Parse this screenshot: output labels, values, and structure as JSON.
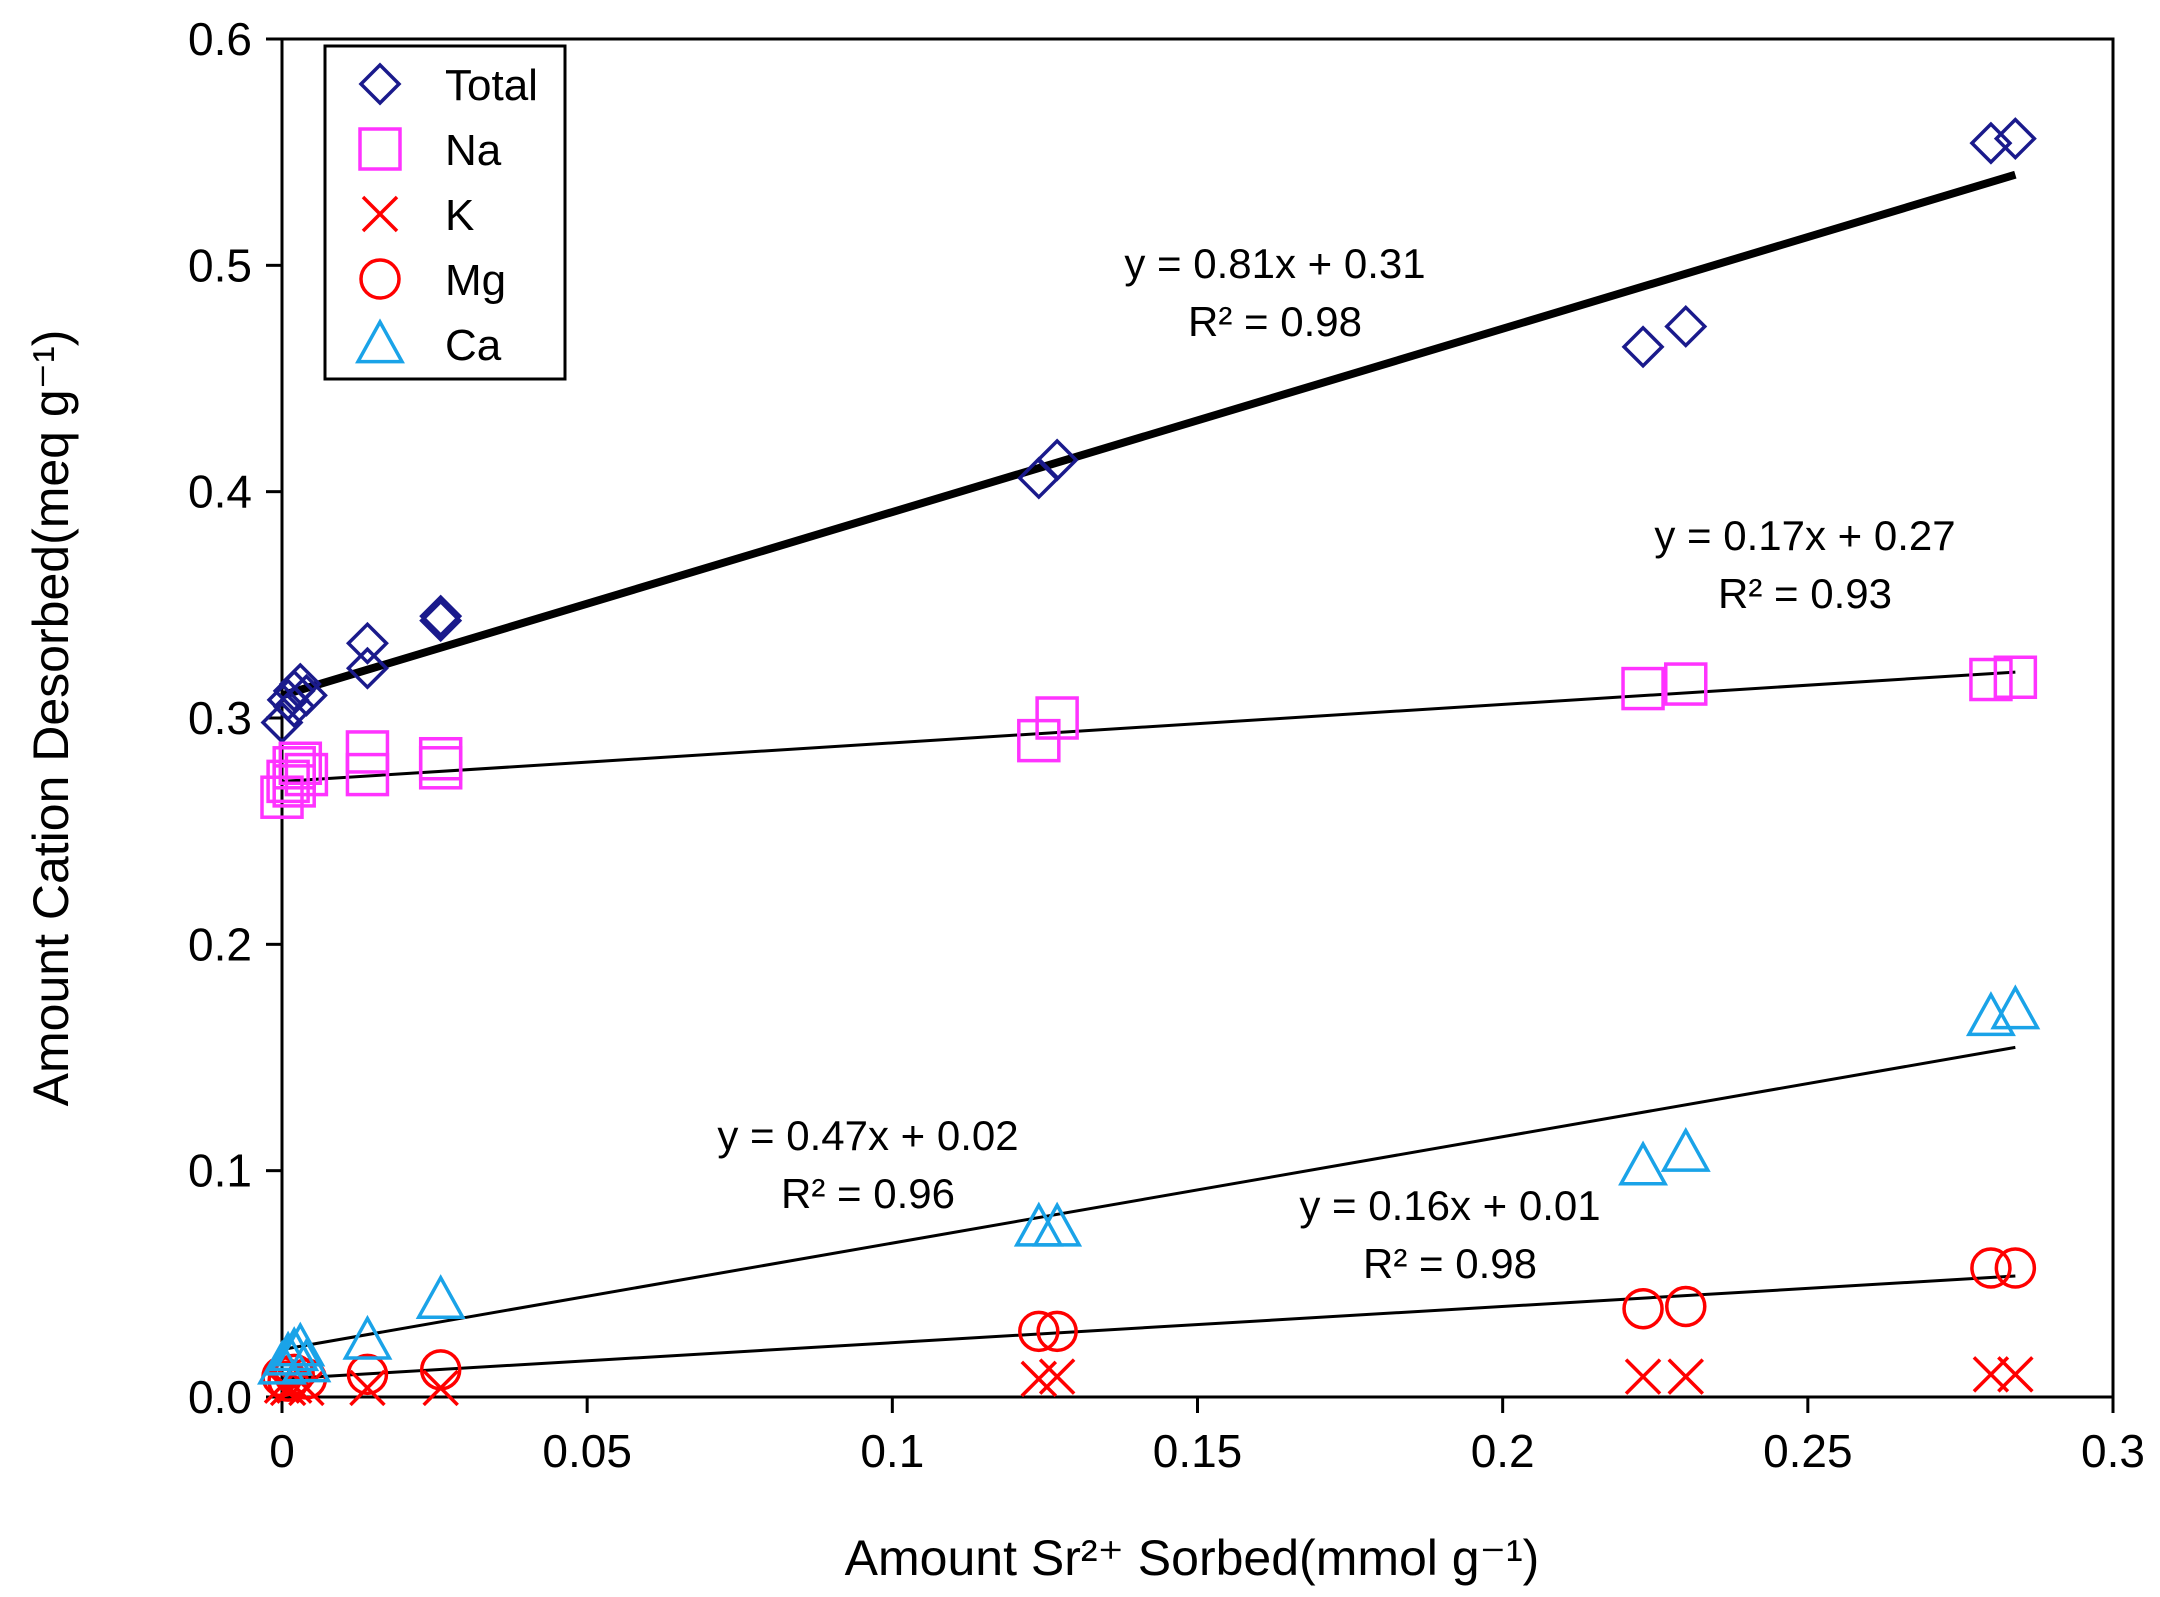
{
  "chart_data": {
    "type": "scatter",
    "title": "",
    "xlabel": "Amount Sr²⁺ Sorbed(mmol g⁻¹)",
    "ylabel": "Amount Cation Desorbed(meq g⁻¹)",
    "xlim": [
      0,
      0.3
    ],
    "ylim": [
      0,
      0.6
    ],
    "x_ticks": [
      0,
      0.05,
      0.1,
      0.15,
      0.2,
      0.25,
      0.3
    ],
    "x_tick_labels": [
      "0",
      "0.05",
      "0.1",
      "0.15",
      "0.2",
      "0.25",
      "0.3"
    ],
    "y_ticks": [
      0,
      0.1,
      0.2,
      0.3,
      0.4,
      0.5,
      0.6
    ],
    "y_tick_labels": [
      "0.0",
      "0.1",
      "0.2",
      "0.3",
      "0.4",
      "0.5",
      "0.6"
    ],
    "grid": false,
    "legend_position": "top-left",
    "series": [
      {
        "name": "Total",
        "marker": "diamond",
        "color": "#1a1a8c",
        "x": [
          0,
          0.001,
          0.002,
          0.003,
          0.002,
          0.004,
          0.014,
          0.014,
          0.026,
          0.026,
          0.124,
          0.127,
          0.223,
          0.23,
          0.28,
          0.284
        ],
        "y": [
          0.298,
          0.308,
          0.312,
          0.315,
          0.305,
          0.31,
          0.322,
          0.333,
          0.343,
          0.345,
          0.406,
          0.414,
          0.464,
          0.473,
          0.554,
          0.556
        ]
      },
      {
        "name": "Na",
        "marker": "square",
        "color": "#ff33ff",
        "x": [
          0,
          0.001,
          0.002,
          0.003,
          0.002,
          0.004,
          0.014,
          0.014,
          0.026,
          0.026,
          0.124,
          0.127,
          0.223,
          0.23,
          0.28,
          0.284
        ],
        "y": [
          0.265,
          0.272,
          0.278,
          0.28,
          0.27,
          0.275,
          0.275,
          0.285,
          0.278,
          0.282,
          0.29,
          0.3,
          0.313,
          0.315,
          0.317,
          0.318
        ]
      },
      {
        "name": "K",
        "marker": "x",
        "color": "#ff0000",
        "x": [
          0,
          0.001,
          0.002,
          0.004,
          0.014,
          0.026,
          0.124,
          0.127,
          0.223,
          0.23,
          0.28,
          0.284
        ],
        "y": [
          0.005,
          0.004,
          0.005,
          0.004,
          0.004,
          0.004,
          0.008,
          0.009,
          0.009,
          0.009,
          0.01,
          0.01
        ]
      },
      {
        "name": "Mg",
        "marker": "circle",
        "color": "#ff0000",
        "x": [
          0,
          0.001,
          0.002,
          0.004,
          0.014,
          0.026,
          0.124,
          0.127,
          0.223,
          0.23,
          0.28,
          0.284
        ],
        "y": [
          0.009,
          0.007,
          0.01,
          0.008,
          0.01,
          0.012,
          0.029,
          0.029,
          0.039,
          0.04,
          0.057,
          0.057
        ]
      },
      {
        "name": "Ca",
        "marker": "triangle",
        "color": "#1aa3e8",
        "x": [
          0,
          0.001,
          0.002,
          0.003,
          0.004,
          0.014,
          0.026,
          0.124,
          0.127,
          0.223,
          0.23,
          0.28,
          0.284
        ],
        "y": [
          0.014,
          0.018,
          0.02,
          0.022,
          0.015,
          0.025,
          0.043,
          0.075,
          0.075,
          0.102,
          0.108,
          0.168,
          0.171
        ]
      }
    ],
    "trendlines": [
      {
        "series": "Total",
        "slope": 0.81,
        "intercept": 0.31,
        "x_range": [
          0,
          0.284
        ],
        "stroke": "thick",
        "equation": "y = 0.81x + 0.31",
        "r2": "R² = 0.98"
      },
      {
        "series": "Na",
        "slope": 0.17,
        "intercept": 0.272,
        "x_range": [
          0,
          0.284
        ],
        "stroke": "thin",
        "equation": "y = 0.17x + 0.27",
        "r2": "R² = 0.93"
      },
      {
        "series": "Ca",
        "slope": 0.47,
        "intercept": 0.021,
        "x_range": [
          0,
          0.284
        ],
        "stroke": "thin",
        "equation": "y = 0.47x + 0.02",
        "r2": "R² = 0.96"
      },
      {
        "series": "Mg",
        "slope": 0.16,
        "intercept": 0.008,
        "x_range": [
          0,
          0.284
        ],
        "stroke": "thin",
        "equation": "y = 0.16x + 0.01",
        "r2": "R² = 0.98"
      }
    ]
  }
}
